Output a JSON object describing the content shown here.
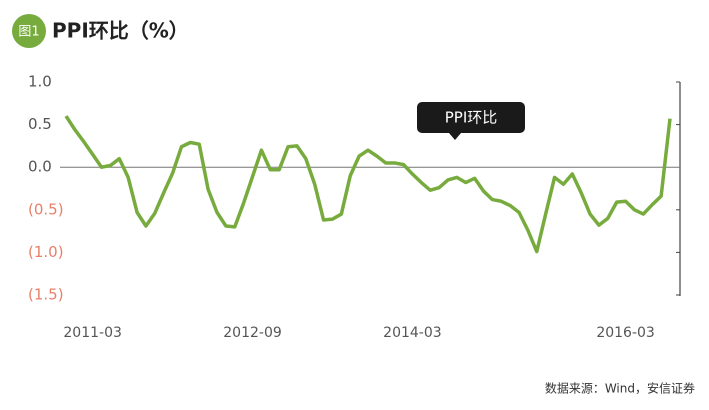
{
  "chart_data": {
    "type": "line",
    "badge": "图1",
    "title": "PPI环比（%）",
    "source": "数据来源：Wind，安信证券",
    "annotation": "PPI环比",
    "color": "#77ab3d",
    "tick_label_color": "#555555",
    "negative_tick_label_color": "#e8806a",
    "categories": [
      null,
      null,
      null,
      "2011-03",
      null,
      null,
      null,
      null,
      null,
      null,
      null,
      null,
      null,
      null,
      null,
      null,
      null,
      null,
      null,
      null,
      null,
      "2012-09",
      null,
      null,
      null,
      null,
      null,
      null,
      null,
      null,
      null,
      null,
      null,
      null,
      null,
      null,
      null,
      null,
      null,
      "2014-03",
      null,
      null,
      null,
      null,
      null,
      null,
      null,
      null,
      null,
      null,
      null,
      null,
      null,
      null,
      null,
      null,
      null,
      null,
      null,
      null,
      null,
      null,
      null,
      "2016-03",
      null,
      null,
      null,
      null,
      null
    ],
    "values": [
      0.6,
      0.44,
      0.3,
      0.15,
      0.0,
      0.02,
      0.1,
      -0.12,
      -0.53,
      -0.69,
      -0.54,
      -0.3,
      -0.07,
      0.24,
      0.29,
      0.27,
      -0.26,
      -0.53,
      -0.69,
      -0.7,
      -0.42,
      -0.11,
      0.2,
      -0.03,
      -0.03,
      0.24,
      0.25,
      0.1,
      -0.2,
      -0.62,
      -0.61,
      -0.55,
      -0.1,
      0.13,
      0.2,
      0.13,
      0.05,
      0.05,
      0.03,
      -0.08,
      -0.18,
      -0.27,
      -0.24,
      -0.15,
      -0.12,
      -0.18,
      -0.13,
      -0.28,
      -0.38,
      -0.4,
      -0.45,
      -0.53,
      -0.74,
      -0.99,
      -0.55,
      -0.12,
      -0.2,
      -0.08,
      -0.3,
      -0.55,
      -0.68,
      -0.6,
      -0.41,
      -0.4,
      -0.5,
      -0.55,
      -0.44,
      -0.34,
      0.57
    ],
    "ylim": [
      -1.5,
      1.0
    ],
    "yticks": [
      {
        "value": 1.0,
        "label": "1.0"
      },
      0.5,
      {
        "value": 0,
        "label": "0.0"
      },
      {
        "value": -0.5,
        "label": "(0.5)"
      },
      {
        "value": -1.0,
        "label": "(1.0)"
      },
      {
        "value": -1.5,
        "label": "(1.5)"
      }
    ]
  }
}
